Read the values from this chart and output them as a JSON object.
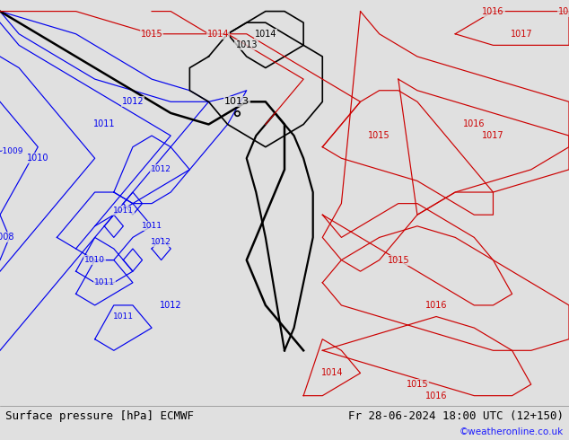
{
  "title_left": "Surface pressure [hPa] ECMWF",
  "title_right": "Fr 28-06-2024 18:00 UTC (12+150)",
  "credit": "©weatheronline.co.uk",
  "bg_color": "#e0e0e0",
  "land_green": "#c8e6b4",
  "land_gray": "#c8c8c8",
  "sea_color": "#e0e0e0",
  "bottom_color": "#cccccc",
  "fig_width": 6.34,
  "fig_height": 4.9,
  "dpi": 100,
  "title_fontsize": 9,
  "credit_color": "#1a1aff",
  "credit_fontsize": 7.5,
  "map_extent": [
    2,
    32,
    54.5,
    72.5
  ],
  "label_bg_alpha": 0.0
}
